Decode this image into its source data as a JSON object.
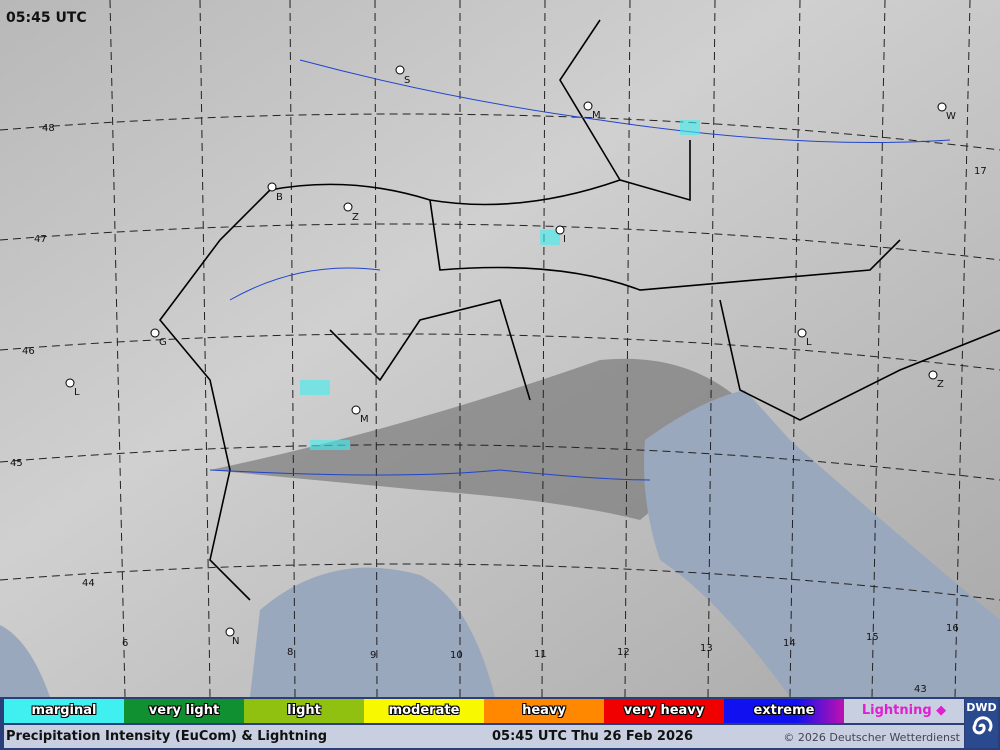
{
  "map": {
    "time_label": "05:45 UTC",
    "latitude_labels": [
      "48",
      "47",
      "46",
      "45",
      "44",
      "17",
      "43"
    ],
    "longitude_labels": [
      "6",
      "8",
      "9",
      "10",
      "11",
      "12",
      "13",
      "14",
      "15",
      "16"
    ],
    "cities": [
      "S",
      "M",
      "W",
      "B",
      "Z",
      "I",
      "G",
      "L",
      "L",
      "Z",
      "M",
      "N"
    ]
  },
  "legend": {
    "items": [
      {
        "label": "marginal",
        "color": "#40f0f0"
      },
      {
        "label": "very light",
        "color": "#109030"
      },
      {
        "label": "light",
        "color": "#90c010"
      },
      {
        "label": "moderate",
        "color": "#f8f800"
      },
      {
        "label": "heavy",
        "color": "#ff8800"
      },
      {
        "label": "very heavy",
        "color": "#f00000"
      },
      {
        "label": "extreme",
        "color": "#1010f0"
      },
      {
        "label": "Lightning ◆",
        "color": "#e020d0"
      }
    ]
  },
  "footer": {
    "title": "Precipitation Intensity (EuCom) & Lightning",
    "datetime": "05:45 UTC Thu 26 Feb 2026",
    "copyright": "© 2026 Deutscher Wetterdienst"
  },
  "logo": {
    "text": "DWD"
  }
}
